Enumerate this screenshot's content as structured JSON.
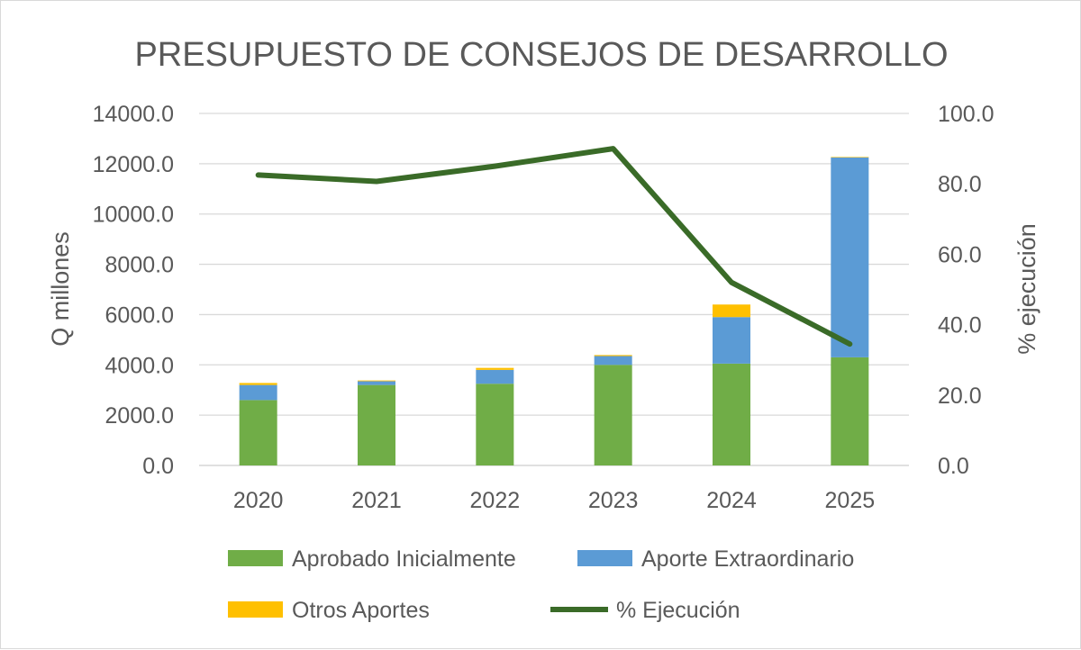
{
  "chart_data": {
    "type": "bar",
    "title": "PRESUPUESTO DE CONSEJOS DE DESARROLLO",
    "categories": [
      "2020",
      "2021",
      "2022",
      "2023",
      "2024",
      "2025"
    ],
    "ylabel": "Q millones",
    "y2label": "% ejecución",
    "ylim": [
      0,
      14000
    ],
    "y2lim": [
      0,
      100
    ],
    "y_ticks": [
      "0.0",
      "2000.0",
      "4000.0",
      "6000.0",
      "8000.0",
      "10000.0",
      "12000.0",
      "14000.0"
    ],
    "y2_ticks": [
      "0.0",
      "20.0",
      "40.0",
      "60.0",
      "80.0",
      "100.0"
    ],
    "stacked": true,
    "grid": true,
    "legend_position": "bottom",
    "series": [
      {
        "name": "Aprobado Inicialmente",
        "kind": "bar",
        "axis": "left",
        "color": "#70ad47",
        "values": [
          2600,
          3200,
          3250,
          4000,
          4050,
          4300
        ]
      },
      {
        "name": "Aporte Extraordinario",
        "kind": "bar",
        "axis": "left",
        "color": "#5b9bd5",
        "values": [
          600,
          150,
          550,
          350,
          1850,
          7950
        ]
      },
      {
        "name": "Otros Aportes",
        "kind": "bar",
        "axis": "left",
        "color": "#ffc000",
        "values": [
          80,
          30,
          80,
          40,
          500,
          20
        ]
      },
      {
        "name": "% Ejecución",
        "kind": "line",
        "axis": "right",
        "color": "#3a6b28",
        "values": [
          82.5,
          80.7,
          85,
          90,
          52,
          34.5
        ]
      }
    ]
  }
}
